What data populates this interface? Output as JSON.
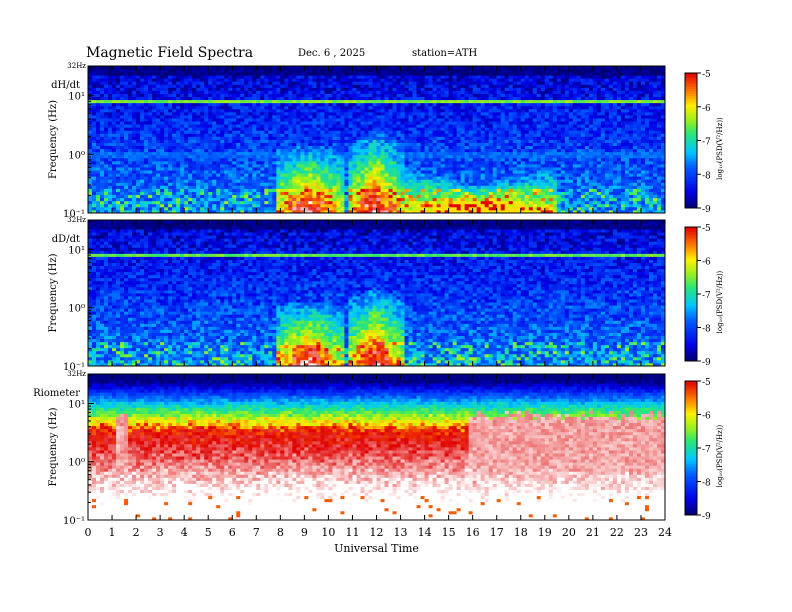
{
  "header": {
    "title": "Magnetic  Field  Spectra",
    "date": "Dec. 6  , 2025",
    "station": "station=ATH"
  },
  "chart_data": [
    {
      "type": "heatmap",
      "panel_label": "dH/dt",
      "top_label": "32Hz",
      "ylabel": "Frequency  (Hz)",
      "y_scale": "log",
      "ylim": [
        0.1,
        32
      ],
      "yticks": [
        "10⁻¹",
        "10⁰",
        "10¹"
      ],
      "xlim": [
        0,
        24
      ],
      "colorbar": {
        "label": "log₁₀(PSD(V²/Hz))",
        "ticks": [
          -5,
          -6,
          -7,
          -8,
          -9
        ],
        "range": [
          -9,
          -5
        ]
      },
      "features": [
        {
          "kind": "band",
          "y": 8,
          "level": -6.5
        },
        {
          "kind": "band",
          "y": 1.0,
          "level": -7.8
        },
        {
          "kind": "blob",
          "x": [
            7.8,
            10.6
          ],
          "y_max": 1.5,
          "level": -5.5
        },
        {
          "kind": "blob",
          "x": [
            10.8,
            13.1
          ],
          "y_max": 2.5,
          "level": -5.3
        },
        {
          "kind": "blob",
          "x": [
            13.0,
            19.5
          ],
          "y_max": 0.3,
          "level": -6.8
        }
      ]
    },
    {
      "type": "heatmap",
      "panel_label": "dD/dt",
      "top_label": "32Hz",
      "ylabel": "Frequency  (Hz)",
      "y_scale": "log",
      "ylim": [
        0.1,
        32
      ],
      "yticks": [
        "10⁻¹",
        "10⁰",
        "10¹"
      ],
      "xlim": [
        0,
        24
      ],
      "colorbar": {
        "label": "log₁₀(PSD(V²/Hz))",
        "ticks": [
          -5,
          -6,
          -7,
          -8,
          -9
        ],
        "range": [
          -9,
          -5
        ]
      },
      "features": [
        {
          "kind": "band",
          "y": 8,
          "level": -6.6
        },
        {
          "kind": "blob",
          "x": [
            7.8,
            10.6
          ],
          "y_max": 1.3,
          "level": -5.5
        },
        {
          "kind": "blob",
          "x": [
            10.8,
            13.1
          ],
          "y_max": 2.2,
          "level": -5.3
        }
      ]
    },
    {
      "type": "heatmap",
      "panel_label": "Riometer",
      "top_label": "32Hz",
      "ylabel": "Frequency  (Hz)",
      "y_scale": "log",
      "ylim": [
        0.1,
        32
      ],
      "yticks": [
        "10⁻¹",
        "10⁰",
        "10¹"
      ],
      "xlabel": "Universal Time",
      "xticks": [
        0,
        1,
        2,
        3,
        4,
        5,
        6,
        7,
        8,
        9,
        10,
        11,
        12,
        13,
        14,
        15,
        16,
        17,
        18,
        19,
        20,
        21,
        22,
        23,
        24
      ],
      "xlim": [
        0,
        24
      ],
      "colorbar": {
        "label": "log₁₀(PSD(V²/Hz))",
        "ticks": [
          -5,
          -6,
          -7,
          -8,
          -9
        ],
        "range": [
          -9,
          -5
        ]
      },
      "features": [
        {
          "kind": "saturated_below",
          "y": 4,
          "level": -4.5
        },
        {
          "kind": "spike",
          "x": [
            1.1,
            1.6
          ],
          "level": -4.5
        },
        {
          "kind": "saturated_region",
          "x": [
            15.8,
            24
          ],
          "level": -4.5
        }
      ]
    }
  ]
}
